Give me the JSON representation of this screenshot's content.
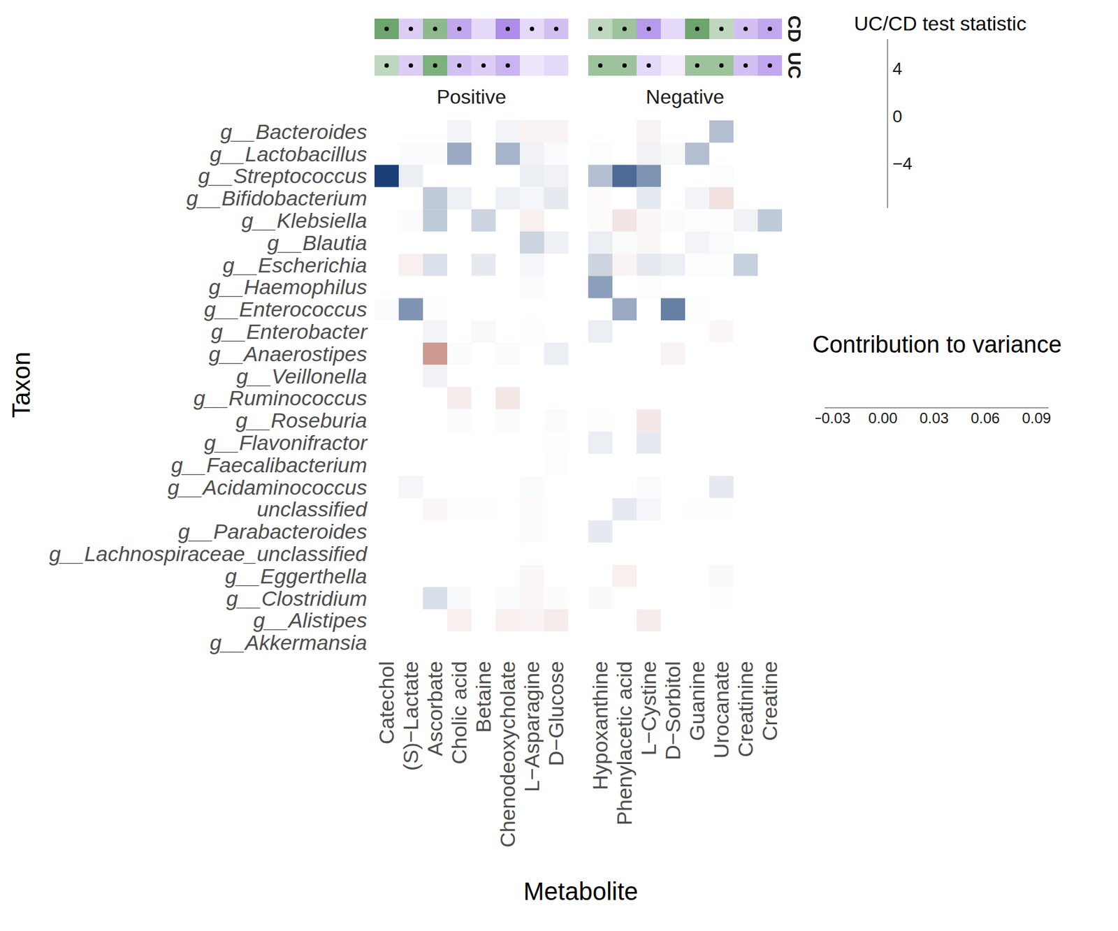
{
  "chart_data": {
    "type": "heatmap",
    "x_label": "Metabolite",
    "y_label": "Taxon",
    "facets": [
      {
        "name": "Positive",
        "columns": [
          "Catechol",
          "(S)−Lactate",
          "Ascorbate",
          "Cholic acid",
          "Betaine",
          "Chenodeoxycholate",
          "L−Asparagine",
          "D−Glucose"
        ]
      },
      {
        "name": "Negative",
        "columns": [
          "Hypoxanthine",
          "Phenylacetic acid",
          "L−Cystine",
          "D−Sorbitol",
          "Guanine",
          "Urocanate",
          "Creatinine",
          "Creatine"
        ]
      }
    ],
    "rows": [
      "g__Bacteroides",
      "g__Lactobacillus",
      "g__Streptococcus",
      "g__Bifidobacterium",
      "g__Klebsiella",
      "g__Blautia",
      "g__Escherichia",
      "g__Haemophilus",
      "g__Enterococcus",
      "g__Enterobacter",
      "g__Anaerostipes",
      "g__Veillonella",
      "g__Ruminococcus",
      "g__Roseburia",
      "g__Flavonifractor",
      "g__Faecalibacterium",
      "g__Acidaminococcus",
      "unclassified",
      "g__Parabacteroides",
      "g__Lachnospiraceae_unclassified",
      "g__Eggerthella",
      "g__Clostridium",
      "g__Alistipes",
      "g__Akkermansia"
    ],
    "cells": [
      [
        null,
        null,
        null,
        0.005,
        null,
        0.005,
        -0.003,
        -0.003,
        null,
        null,
        -0.003,
        null,
        null,
        0.03,
        null,
        null
      ],
      [
        null,
        0.002,
        0.002,
        0.04,
        null,
        0.035,
        0.006,
        0.002,
        0.001,
        null,
        0.006,
        0.003,
        0.03,
        null,
        null,
        null
      ],
      [
        0.09,
        0.008,
        null,
        null,
        null,
        null,
        0.008,
        0.006,
        0.03,
        0.07,
        0.05,
        null,
        null,
        0.001,
        null,
        null
      ],
      [
        null,
        null,
        0.025,
        0.007,
        null,
        0.007,
        0.004,
        0.01,
        -0.001,
        null,
        0.01,
        null,
        0.005,
        -0.008,
        null,
        null
      ],
      [
        null,
        -0.001,
        0.025,
        null,
        0.02,
        null,
        -0.004,
        null,
        -0.001,
        -0.007,
        -0.002,
        0.002,
        0.001,
        0.001,
        0.006,
        0.025
      ],
      [
        null,
        null,
        null,
        null,
        null,
        null,
        0.02,
        0.007,
        0.008,
        0.002,
        -0.002,
        null,
        0.005,
        0.002,
        null,
        null
      ],
      [
        null,
        -0.004,
        0.014,
        null,
        0.01,
        null,
        0.004,
        null,
        0.02,
        -0.003,
        0.01,
        0.008,
        0.001,
        0.001,
        0.022,
        null
      ],
      [
        null,
        null,
        null,
        null,
        null,
        null,
        0.002,
        null,
        0.045,
        null,
        0.001,
        null,
        null,
        null,
        null,
        null
      ],
      [
        0.002,
        0.05,
        0.001,
        null,
        null,
        null,
        null,
        null,
        null,
        0.04,
        null,
        0.06,
        0.001,
        null,
        null,
        null
      ],
      [
        null,
        null,
        0.005,
        null,
        0.003,
        null,
        0.001,
        null,
        0.008,
        null,
        null,
        null,
        null,
        -0.002,
        null,
        null
      ],
      [
        null,
        null,
        -0.027,
        0.002,
        null,
        0.002,
        null,
        0.008,
        null,
        null,
        null,
        -0.003,
        null,
        null,
        null,
        null
      ],
      [
        null,
        null,
        0.006,
        null,
        null,
        null,
        null,
        null,
        null,
        null,
        null,
        null,
        null,
        null,
        null,
        null
      ],
      [
        null,
        null,
        null,
        -0.005,
        null,
        -0.006,
        null,
        null,
        null,
        null,
        null,
        null,
        null,
        null,
        null,
        null
      ],
      [
        null,
        null,
        null,
        0.002,
        null,
        0.002,
        null,
        0.002,
        0.0005,
        null,
        -0.006,
        null,
        null,
        null,
        null,
        null
      ],
      [
        null,
        null,
        null,
        null,
        null,
        null,
        null,
        0.0005,
        0.008,
        null,
        0.01,
        null,
        null,
        null,
        null,
        null
      ],
      [
        null,
        null,
        null,
        null,
        null,
        null,
        null,
        0.001,
        null,
        null,
        null,
        null,
        null,
        null,
        null,
        null
      ],
      [
        null,
        0.004,
        null,
        null,
        null,
        null,
        0.002,
        null,
        null,
        null,
        0.002,
        null,
        null,
        0.01,
        null,
        null
      ],
      [
        null,
        null,
        -0.002,
        0.0005,
        0.0005,
        null,
        -0.001,
        null,
        null,
        0.01,
        0.004,
        null,
        0.0005,
        0.0005,
        null,
        null
      ],
      [
        null,
        null,
        null,
        null,
        null,
        null,
        -0.001,
        null,
        0.01,
        null,
        null,
        null,
        null,
        null,
        null,
        null
      ],
      [
        null,
        null,
        null,
        null,
        null,
        null,
        null,
        null,
        null,
        null,
        null,
        null,
        null,
        null,
        null,
        null
      ],
      [
        null,
        null,
        null,
        null,
        null,
        null,
        -0.002,
        null,
        null,
        -0.004,
        null,
        null,
        null,
        0.003,
        null,
        null
      ],
      [
        null,
        null,
        0.015,
        0.003,
        null,
        0.002,
        -0.002,
        -0.001,
        0.003,
        null,
        null,
        null,
        null,
        0.0005,
        null,
        null
      ],
      [
        null,
        null,
        null,
        -0.004,
        null,
        -0.004,
        -0.003,
        -0.005,
        null,
        null,
        -0.005,
        null,
        null,
        null,
        null,
        null
      ],
      [
        null,
        null,
        null,
        null,
        null,
        null,
        null,
        null,
        null,
        null,
        null,
        null,
        null,
        null,
        null,
        null
      ]
    ],
    "color_bar": {
      "title": "Contribution to variance",
      "range": [
        -0.034,
        0.097
      ],
      "ticks": [
        {
          "value": -0.03,
          "label": "−0.03"
        },
        {
          "value": 0,
          "label": "0.00"
        },
        0.03,
        0.06,
        0.09
      ],
      "colors": [
        "#c07f75",
        "#ffffff",
        "#08306b"
      ]
    },
    "annotation": {
      "title": "UC/CD test statistic",
      "rows": [
        "CD",
        "UC"
      ],
      "values": [
        [
          -4.5,
          2,
          -3.5,
          3.5,
          1.5,
          4.5,
          1.5,
          2.5,
          -2,
          -3,
          4,
          1.5,
          -4.5,
          -2,
          2.5,
          3.5
        ],
        [
          -2,
          2,
          -4,
          2.5,
          2,
          3,
          1,
          1.5,
          -3,
          -3,
          1.5,
          0.7,
          -3,
          -3,
          2.5,
          3.5
        ]
      ],
      "significant": [
        [
          true,
          true,
          true,
          true,
          false,
          true,
          true,
          true,
          true,
          true,
          true,
          false,
          true,
          true,
          true,
          true
        ],
        [
          true,
          true,
          true,
          true,
          true,
          true,
          false,
          false,
          true,
          true,
          true,
          false,
          true,
          true,
          true,
          true
        ]
      ],
      "color_bar": {
        "range": [
          -7.8,
          6.5
        ],
        "ticks": [
          4,
          0,
          {
            "value": -4,
            "label": "−4"
          }
        ],
        "colors": [
          "#006400",
          "#ffffff",
          "#8c5be0"
        ]
      }
    }
  }
}
